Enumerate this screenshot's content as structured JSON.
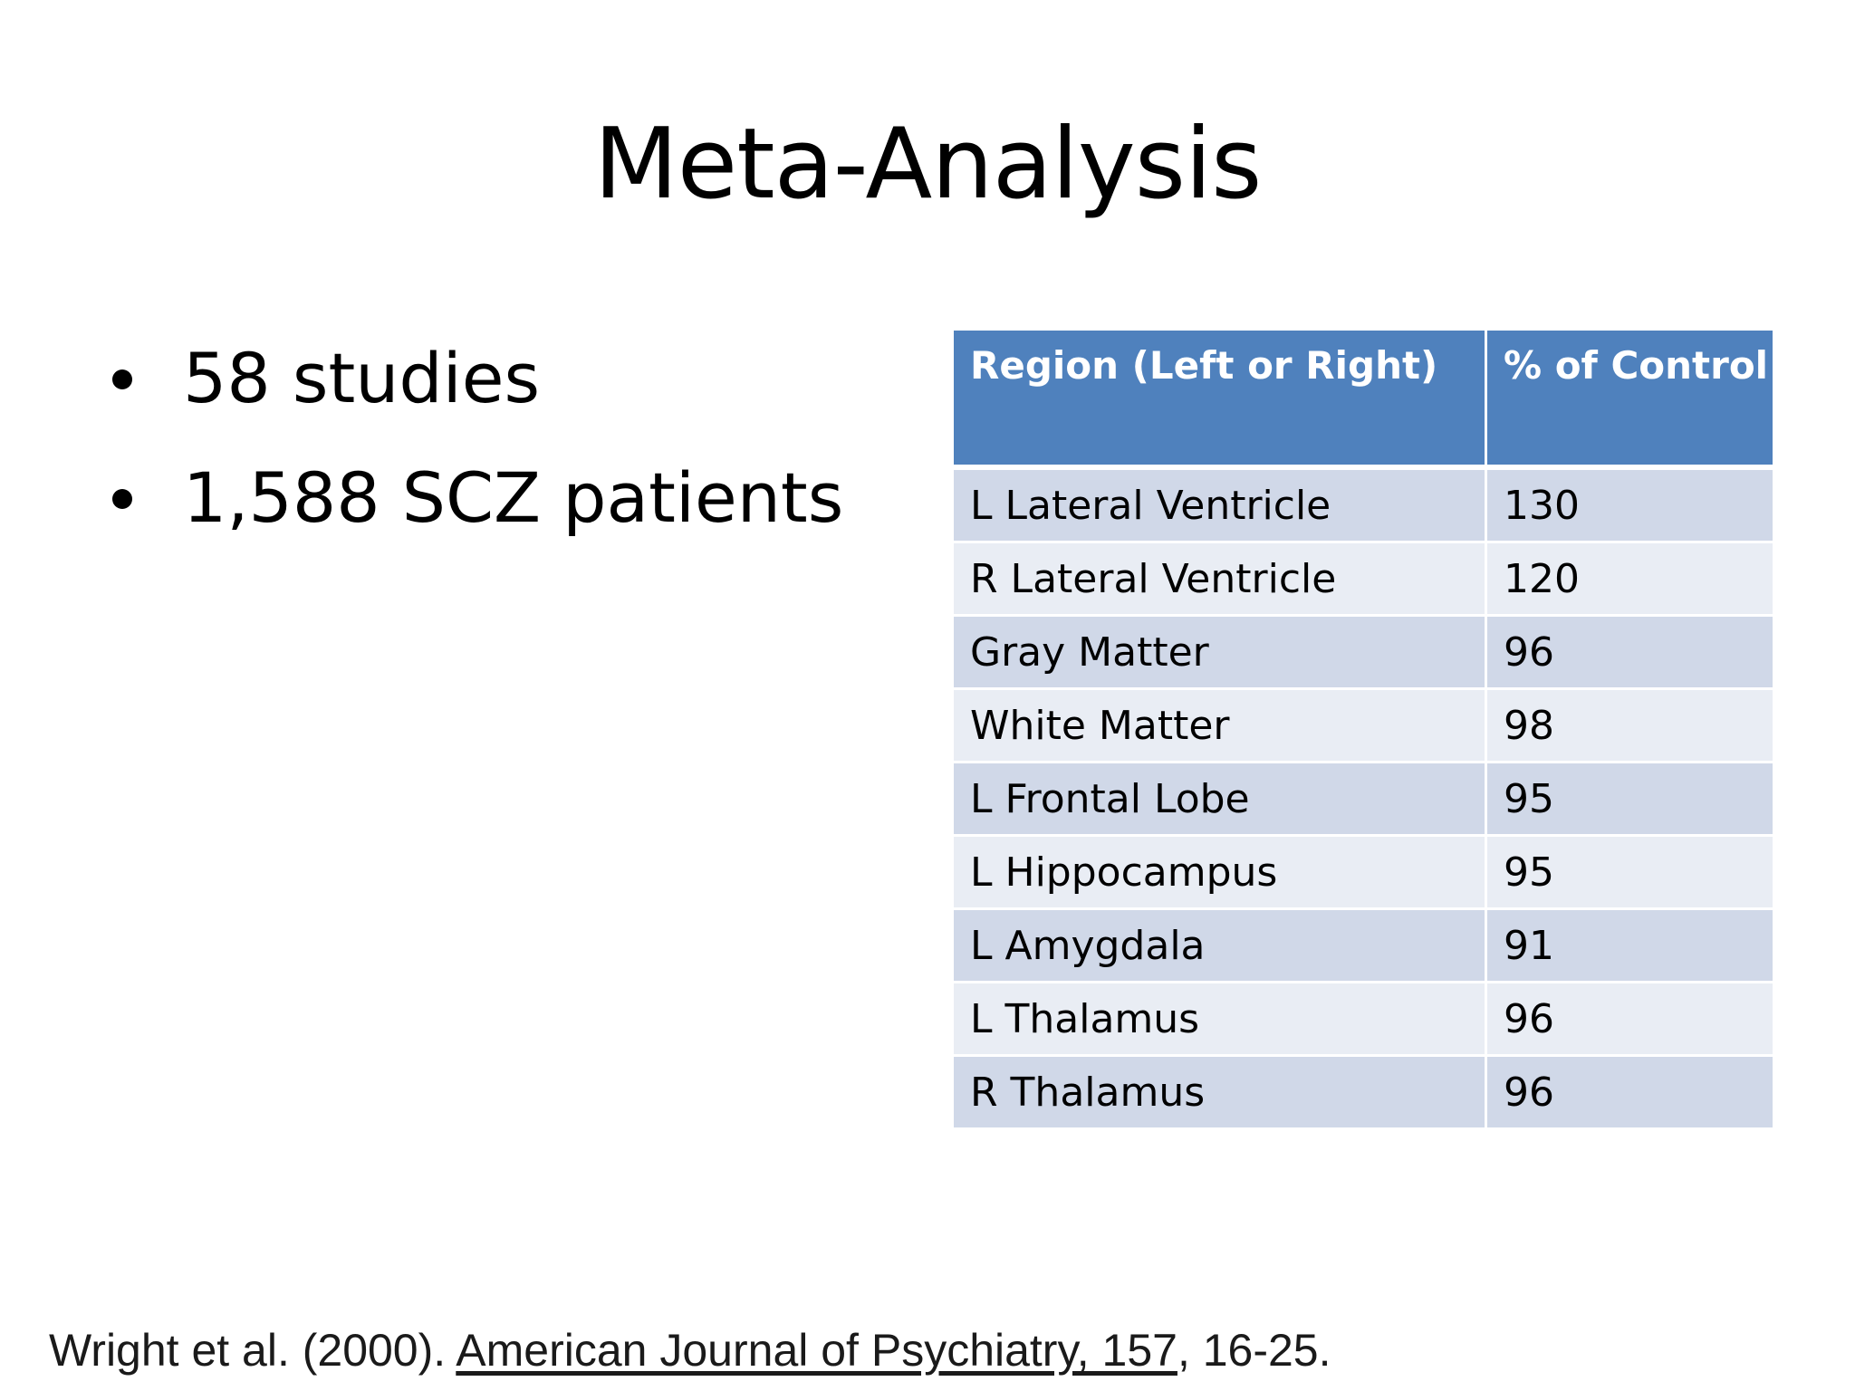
{
  "slide": {
    "title": "Meta-Analysis",
    "bullets": [
      "58 studies",
      "1,588 SCZ patients"
    ]
  },
  "table": {
    "headers": [
      "Region (Left or Right)",
      "% of Control"
    ],
    "rows": [
      {
        "region": "L Lateral Ventricle",
        "value": "130"
      },
      {
        "region": "R Lateral Ventricle",
        "value": "120"
      },
      {
        "region": "Gray Matter",
        "value": "96"
      },
      {
        "region": "White Matter",
        "value": "98"
      },
      {
        "region": "L Frontal Lobe",
        "value": "95"
      },
      {
        "region": "L Hippocampus",
        "value": "95"
      },
      {
        "region": "L Amygdala",
        "value": "91"
      },
      {
        "region": "L Thalamus",
        "value": "96"
      },
      {
        "region": "R Thalamus",
        "value": "96"
      }
    ]
  },
  "citation": {
    "authors": "Wright et al. (2000). ",
    "journal": "American Journal of Psychiatry, 157",
    "pages": ", 16-25."
  },
  "colors": {
    "header_bg": "#4f81bd",
    "row_odd": "#d0d8e8",
    "row_even": "#e9edf4"
  }
}
